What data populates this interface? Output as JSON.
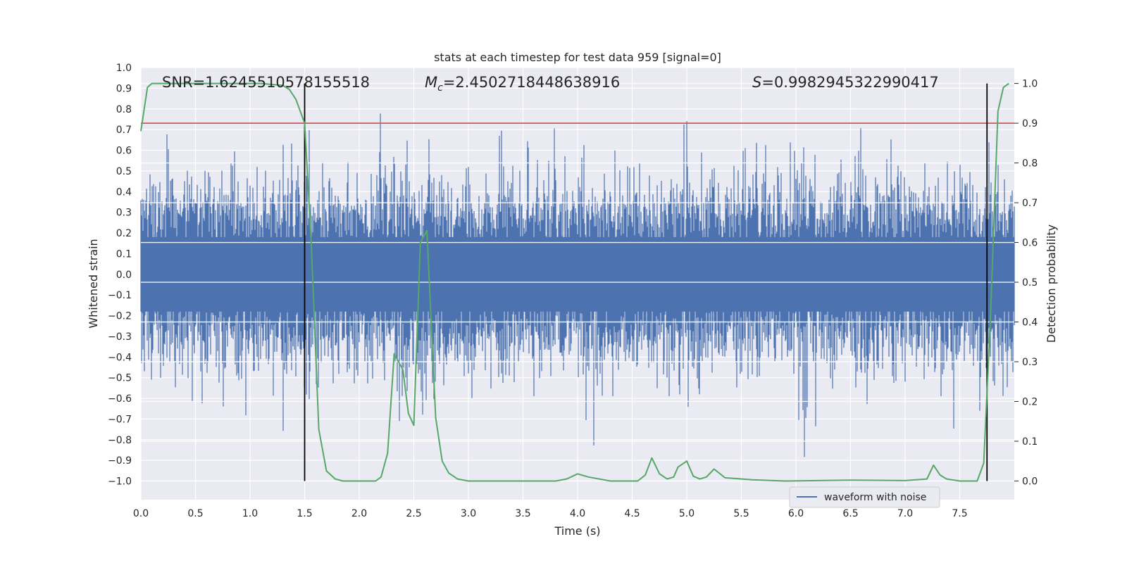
{
  "chart_data": {
    "type": "line",
    "title": "stats at each timestep for test data 959 [signal=0]",
    "xlabel": "Time (s)",
    "ylabel": "Whitened strain",
    "y2label": "Detection probability",
    "xlim": [
      0,
      8
    ],
    "ylim": [
      -1.09,
      1.0
    ],
    "y2lim": [
      -0.047,
      1.04
    ],
    "xticks": [
      "0.0",
      "0.5",
      "1.0",
      "1.5",
      "2.0",
      "2.5",
      "3.0",
      "3.5",
      "4.0",
      "4.5",
      "5.0",
      "5.5",
      "6.0",
      "6.5",
      "7.0",
      "7.5"
    ],
    "yticks": [
      "−1.0",
      "−0.9",
      "−0.8",
      "−0.7",
      "−0.6",
      "−0.5",
      "−0.4",
      "−0.3",
      "−0.2",
      "−0.1",
      "0.0",
      "0.1",
      "0.2",
      "0.3",
      "0.4",
      "0.5",
      "0.6",
      "0.7",
      "0.8",
      "0.9",
      "1.0"
    ],
    "y2ticks": [
      "0.0",
      "0.1",
      "0.2",
      "0.3",
      "0.4",
      "0.5",
      "0.6",
      "0.7",
      "0.8",
      "0.9",
      "1.0"
    ],
    "grid": true,
    "legend_position": "lower-right",
    "annotations": {
      "snr": "SNR=1.6245510578155518",
      "mc_symbol": "M",
      "mc_sub": "c",
      "mc_value": "=2.4502718448638916",
      "s_symbol": "S",
      "s_value": "=0.9982945322990417"
    },
    "threshold_probability": 0.9,
    "vertical_markers_x": [
      1.5,
      7.75
    ],
    "series": [
      {
        "name": "waveform with noise",
        "kind": "noise",
        "color": "#4c72b0",
        "spread": 0.3,
        "max_extent": [
          -1.0,
          0.92
        ]
      },
      {
        "kind": "probability",
        "color": "#55a868",
        "x": [
          0.0,
          0.06,
          0.1,
          0.2,
          0.3,
          0.5,
          0.7,
          0.9,
          1.1,
          1.3,
          1.36,
          1.42,
          1.5,
          1.56,
          1.63,
          1.7,
          1.78,
          1.85,
          2.0,
          2.15,
          2.2,
          2.26,
          2.32,
          2.4,
          2.45,
          2.5,
          2.56,
          2.62,
          2.7,
          2.76,
          2.82,
          2.9,
          3.0,
          3.2,
          3.5,
          3.8,
          3.9,
          4.0,
          4.1,
          4.3,
          4.55,
          4.62,
          4.68,
          4.75,
          4.82,
          4.88,
          4.92,
          5.0,
          5.06,
          5.12,
          5.18,
          5.25,
          5.35,
          5.6,
          5.9,
          6.5,
          7.0,
          7.2,
          7.26,
          7.32,
          7.38,
          7.5,
          7.66,
          7.72,
          7.78,
          7.85,
          7.9,
          7.95
        ],
        "y": [
          0.88,
          0.99,
          1.0,
          1.0,
          1.0,
          1.0,
          1.0,
          1.0,
          1.0,
          0.995,
          0.985,
          0.96,
          0.9,
          0.6,
          0.13,
          0.025,
          0.005,
          0.0,
          0.0,
          0.0,
          0.01,
          0.07,
          0.32,
          0.28,
          0.17,
          0.14,
          0.6,
          0.63,
          0.16,
          0.05,
          0.02,
          0.005,
          0.0,
          0.0,
          0.0,
          0.0,
          0.005,
          0.018,
          0.01,
          0.0,
          0.0,
          0.015,
          0.058,
          0.018,
          0.005,
          0.01,
          0.035,
          0.05,
          0.012,
          0.005,
          0.01,
          0.03,
          0.008,
          0.003,
          0.0,
          0.002,
          0.001,
          0.005,
          0.04,
          0.015,
          0.005,
          0.0,
          0.0,
          0.045,
          0.4,
          0.93,
          0.99,
          1.0
        ]
      }
    ]
  }
}
